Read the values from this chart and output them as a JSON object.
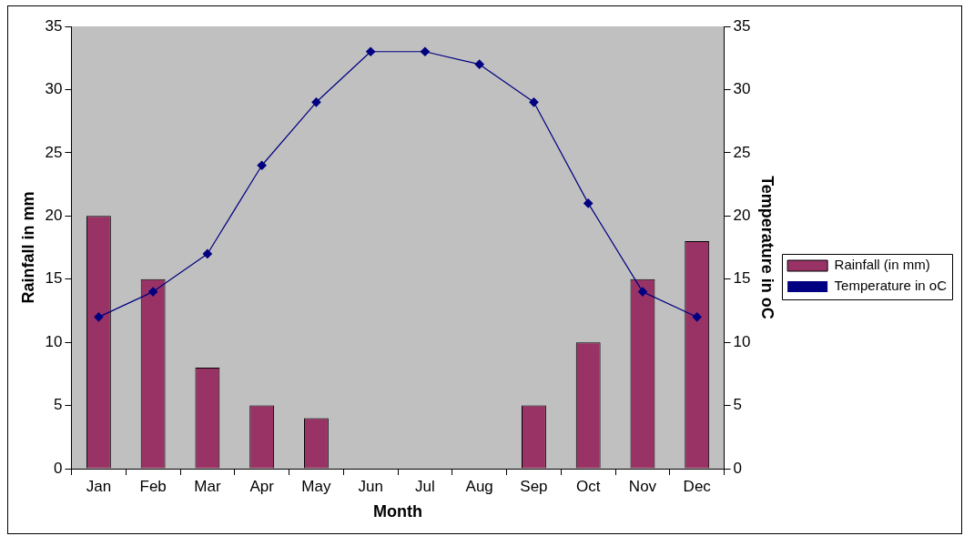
{
  "chart_data": {
    "type": "bar",
    "xlabel": "Month",
    "ylabel": "Rainfall in mm",
    "y2label": "Temperature in oC",
    "categories": [
      "Jan",
      "Feb",
      "Mar",
      "Apr",
      "May",
      "Jun",
      "Jul",
      "Aug",
      "Sep",
      "Oct",
      "Nov",
      "Dec"
    ],
    "series": [
      {
        "name": "Rainfall (in mm)",
        "color": "#993366",
        "values": [
          20,
          15,
          8,
          5,
          4,
          0,
          0,
          0,
          5,
          10,
          15,
          18
        ]
      },
      {
        "name": "Temperature in oC",
        "type": "line",
        "axis": "y2",
        "color": "#000080",
        "marker": "diamond",
        "values": [
          12,
          14,
          17,
          24,
          29,
          33,
          33,
          32,
          29,
          21,
          14,
          12
        ]
      }
    ],
    "ylim": [
      0,
      35
    ],
    "yticks": [
      0,
      5,
      10,
      15,
      20,
      25,
      30,
      35
    ],
    "y2lim": [
      0,
      35
    ],
    "y2ticks": [
      0,
      5,
      10,
      15,
      20,
      25,
      30,
      35
    ],
    "grid": false,
    "legend": "right"
  }
}
